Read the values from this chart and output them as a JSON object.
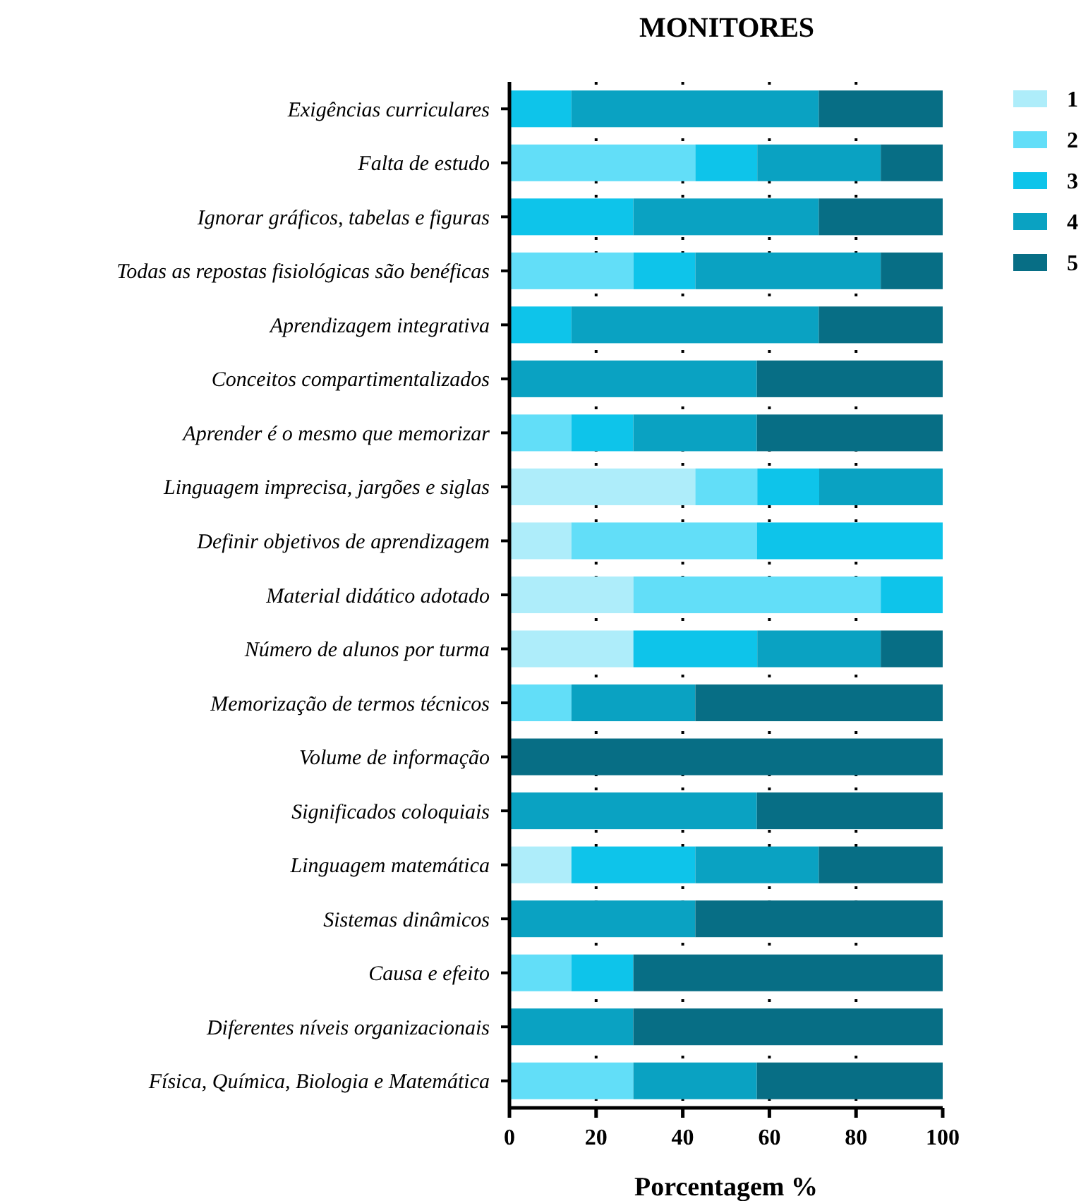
{
  "chart_data": {
    "type": "bar",
    "orientation": "horizontal",
    "stacked": true,
    "title": "MONITORES",
    "xlabel": "Porcentagem %",
    "categories": [
      "Exigências curriculares",
      "Falta de estudo",
      "Ignorar gráficos, tabelas e figuras",
      "Todas as repostas fisiológicas são benéficas",
      "Aprendizagem integrativa",
      "Conceitos compartimentalizados",
      "Aprender é o mesmo que memorizar",
      "Linguagem imprecisa, jargões e siglas",
      "Definir objetivos de aprendizagem ",
      "Material didático adotado",
      "Número de alunos por turma",
      "Memorização de termos técnicos",
      "Volume de informação",
      "Significados coloquiais",
      "Linguagem matemática",
      "Sistemas dinâmicos",
      "Causa e efeito",
      "Diferentes níveis organizacionais",
      "Física, Química, Biologia e Matemática"
    ],
    "series": [
      {
        "name": "1",
        "color": "#aeedfa",
        "values": [
          0,
          0,
          0,
          0,
          0,
          0,
          0,
          42.9,
          14.3,
          28.6,
          28.6,
          0,
          0,
          0,
          14.3,
          0,
          0,
          0,
          0
        ]
      },
      {
        "name": "2",
        "color": "#62def8",
        "values": [
          0,
          42.9,
          0,
          28.6,
          0,
          0,
          14.3,
          14.3,
          42.8,
          57.1,
          0,
          14.3,
          0,
          0,
          0,
          0,
          14.3,
          0,
          28.6
        ]
      },
      {
        "name": "3",
        "color": "#0ec4ea",
        "values": [
          14.3,
          14.3,
          28.6,
          14.3,
          14.3,
          0,
          14.3,
          14.3,
          42.9,
          14.3,
          28.6,
          0,
          0,
          0,
          28.6,
          0,
          14.3,
          0,
          0
        ]
      },
      {
        "name": "4",
        "color": "#0aa2c2",
        "values": [
          57.1,
          28.5,
          42.8,
          42.8,
          57.1,
          57.1,
          28.5,
          28.5,
          0,
          0,
          28.5,
          28.6,
          0,
          57.1,
          28.5,
          42.9,
          0,
          28.6,
          28.5
        ]
      },
      {
        "name": "5",
        "color": "#076e85",
        "values": [
          28.6,
          14.3,
          28.6,
          14.3,
          28.6,
          42.9,
          42.9,
          0,
          0,
          0,
          14.3,
          57.1,
          100,
          42.9,
          28.6,
          57.1,
          71.4,
          71.4,
          42.9
        ]
      }
    ],
    "xlim": [
      0,
      100
    ],
    "xticks": [
      0,
      20,
      40,
      60,
      80,
      100
    ],
    "grid": "x",
    "legend": "top right"
  }
}
